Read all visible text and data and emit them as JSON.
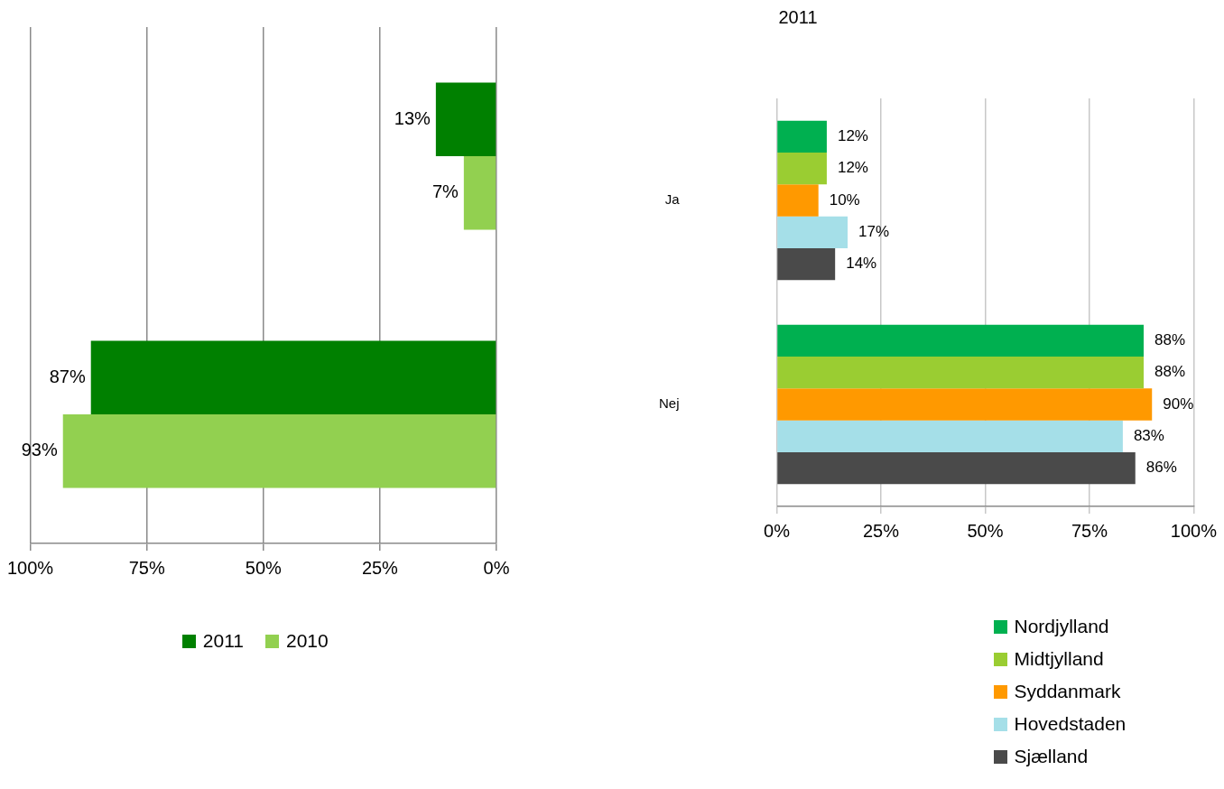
{
  "chart_data": [
    {
      "type": "bar",
      "orientation": "horizontal",
      "categories": [
        null,
        null
      ],
      "series": [
        {
          "name": "2011",
          "color": "#008000",
          "values": [
            13,
            87
          ],
          "value_labels": [
            "13%",
            "87%"
          ]
        },
        {
          "name": "2010",
          "color": "#92d050",
          "values": [
            7,
            93
          ],
          "value_labels": [
            "7%",
            "93%"
          ]
        }
      ],
      "xlim": [
        100,
        0
      ],
      "xticks": [
        {
          "value": 100,
          "label": "100%"
        },
        {
          "value": 75,
          "label": "75%"
        },
        {
          "value": 50,
          "label": "50%"
        },
        {
          "value": 25,
          "label": "25%"
        },
        {
          "value": 0,
          "label": "0%"
        }
      ],
      "grid": "x",
      "legend": "bottom",
      "tick_labels": "x"
    },
    {
      "type": "bar",
      "orientation": "horizontal",
      "title": "2011",
      "categories": [
        "Ja",
        "Nej"
      ],
      "series": [
        {
          "name": "Nordjylland",
          "color": "#00b050",
          "values": [
            12,
            88
          ],
          "value_labels": [
            "12%",
            "88%"
          ]
        },
        {
          "name": "Midtjylland",
          "color": "#9acd32",
          "values": [
            12,
            88
          ],
          "value_labels": [
            "12%",
            "88%"
          ]
        },
        {
          "name": "Syddanmark",
          "color": "#ff9900",
          "values": [
            10,
            90
          ],
          "value_labels": [
            "10%",
            "90%"
          ]
        },
        {
          "name": "Hovedstaden",
          "color": "#a5dfe8",
          "values": [
            17,
            83
          ],
          "value_labels": [
            "17%",
            "83%"
          ]
        },
        {
          "name": "Sjælland",
          "color": "#4a4a4a",
          "values": [
            14,
            86
          ],
          "value_labels": [
            "14%",
            "86%"
          ]
        }
      ],
      "xlim": [
        0,
        100
      ],
      "xticks": [
        {
          "value": 0,
          "label": "0%"
        },
        {
          "value": 25,
          "label": "25%"
        },
        {
          "value": 50,
          "label": "50%"
        },
        {
          "value": 75,
          "label": "75%"
        },
        {
          "value": 100,
          "label": "100%"
        }
      ],
      "grid": "x",
      "legend": "bottom"
    }
  ]
}
